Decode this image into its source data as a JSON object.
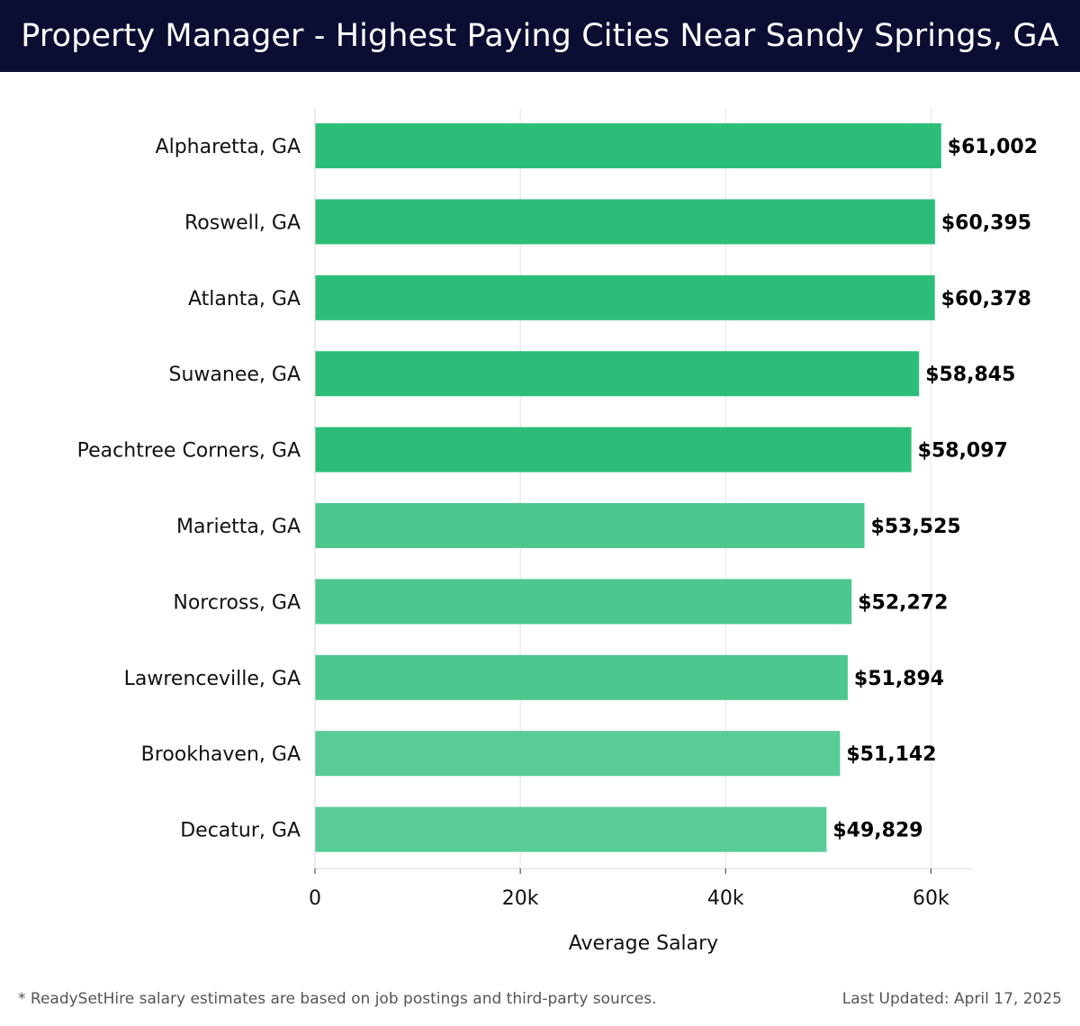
{
  "header": {
    "title": "Property Manager - Highest Paying Cities Near Sandy Springs, GA"
  },
  "chart_data": {
    "type": "bar",
    "orientation": "horizontal",
    "title": "Property Manager - Highest Paying Cities Near Sandy Springs, GA",
    "categories": [
      "Alpharetta, GA",
      "Roswell, GA",
      "Atlanta, GA",
      "Suwanee, GA",
      "Peachtree Corners, GA",
      "Marietta, GA",
      "Norcross, GA",
      "Lawrenceville, GA",
      "Brookhaven, GA",
      "Decatur, GA"
    ],
    "values": [
      61002,
      60395,
      60378,
      58845,
      58097,
      53525,
      52272,
      51894,
      51142,
      49829
    ],
    "value_labels": [
      "$61,002",
      "$60,395",
      "$60,378",
      "$58,845",
      "$58,097",
      "$53,525",
      "$52,272",
      "$51,894",
      "$51,142",
      "$49,829"
    ],
    "xlabel": "Average Salary",
    "ylabel": "",
    "xlim": [
      0,
      64000
    ],
    "xticks": [
      0,
      20000,
      40000,
      60000
    ],
    "xtick_labels": [
      "0",
      "20k",
      "40k",
      "60k"
    ],
    "grid": true,
    "colors": {
      "top": "#2cbe78",
      "rest": "#4cc78d",
      "bottom": "#58cb96"
    }
  },
  "footer": {
    "note": "* ReadySetHire salary estimates are based on job postings and third-party sources.",
    "updated": "Last Updated: April 17, 2025"
  }
}
